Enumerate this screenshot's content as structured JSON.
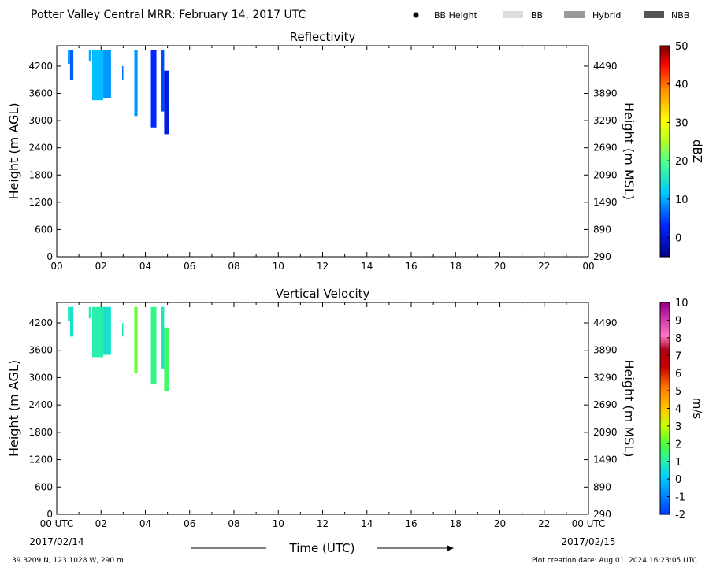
{
  "header": {
    "title": "Potter Valley Central MRR:  February 14, 2017 UTC",
    "legend": [
      {
        "label": "BB Height",
        "kind": "dot",
        "color": "#000000"
      },
      {
        "label": "BB",
        "kind": "swatch",
        "color": "#dcdcdc"
      },
      {
        "label": "Hybrid",
        "kind": "swatch",
        "color": "#9a9a9a"
      },
      {
        "label": "NBB",
        "kind": "swatch",
        "color": "#555555"
      }
    ]
  },
  "footer": {
    "location": "39.3209 N, 123.1028 W, 290 m",
    "creation": "Plot creation date: Aug 01, 2024 16:23:05 UTC",
    "time_label": "Time (UTC)",
    "start_date": "2017/02/14",
    "end_date": "2017/02/15"
  },
  "chart_data": [
    {
      "type": "heatmap",
      "title": "Reflectivity",
      "ylabel": "Height (m AGL)",
      "y2label": "Height (m MSL)",
      "xlim": [
        0,
        24
      ],
      "ylim": [
        0,
        4650
      ],
      "x_ticks": [
        "00",
        "02",
        "04",
        "06",
        "08",
        "10",
        "12",
        "14",
        "16",
        "18",
        "20",
        "22",
        "00"
      ],
      "y_ticks": [
        0,
        600,
        1200,
        1800,
        2400,
        3000,
        3600,
        4200
      ],
      "y2_ticks": [
        290,
        890,
        1490,
        2090,
        2690,
        3290,
        3890,
        4490
      ],
      "colorbar": {
        "label": "dBZ",
        "min": -5,
        "max": 50,
        "ticks": [
          0,
          10,
          20,
          30,
          40,
          50
        ]
      },
      "streaks": [
        {
          "t0": 0.5,
          "t1": 0.6,
          "h_base": 4250,
          "h_top": 4550,
          "value": 9
        },
        {
          "t0": 0.6,
          "t1": 0.75,
          "h_base": 3900,
          "h_top": 4550,
          "value": 6
        },
        {
          "t0": 1.45,
          "t1": 1.55,
          "h_base": 4300,
          "h_top": 4550,
          "value": 10
        },
        {
          "t0": 1.6,
          "t1": 2.1,
          "h_base": 3450,
          "h_top": 4550,
          "value": 11
        },
        {
          "t0": 2.1,
          "t1": 2.45,
          "h_base": 3500,
          "h_top": 4550,
          "value": 9
        },
        {
          "t0": 2.95,
          "t1": 3.0,
          "h_base": 3900,
          "h_top": 4200,
          "value": 7
        },
        {
          "t0": 3.5,
          "t1": 3.65,
          "h_base": 3100,
          "h_top": 4550,
          "value": 9
        },
        {
          "t0": 4.25,
          "t1": 4.5,
          "h_base": 2850,
          "h_top": 4550,
          "value": 3
        },
        {
          "t0": 4.7,
          "t1": 4.85,
          "h_base": 3200,
          "h_top": 4550,
          "value": 5
        },
        {
          "t0": 4.85,
          "t1": 5.05,
          "h_base": 2700,
          "h_top": 4100,
          "value": 1
        }
      ]
    },
    {
      "type": "heatmap",
      "title": "Vertical Velocity",
      "ylabel": "Height (m AGL)",
      "y2label": "Height (m MSL)",
      "xlim": [
        0,
        24
      ],
      "ylim": [
        0,
        4650
      ],
      "x_ticks": [
        "00 UTC",
        "02",
        "04",
        "06",
        "08",
        "10",
        "12",
        "14",
        "16",
        "18",
        "20",
        "22",
        "00 UTC"
      ],
      "y_ticks": [
        0,
        600,
        1200,
        1800,
        2400,
        3000,
        3600,
        4200
      ],
      "y2_ticks": [
        290,
        890,
        1490,
        2090,
        2690,
        3290,
        3890,
        4490
      ],
      "colorbar": {
        "label": "m/s",
        "min": -2,
        "max": 10,
        "ticks": [
          -2,
          -1,
          0,
          1,
          2,
          3,
          4,
          5,
          6,
          7,
          8,
          9,
          10
        ]
      },
      "streaks": [
        {
          "t0": 0.5,
          "t1": 0.6,
          "h_base": 4250,
          "h_top": 4550,
          "value": 0.8
        },
        {
          "t0": 0.6,
          "t1": 0.75,
          "h_base": 3900,
          "h_top": 4550,
          "value": 0.6
        },
        {
          "t0": 1.45,
          "t1": 1.55,
          "h_base": 4300,
          "h_top": 4550,
          "value": 0.9
        },
        {
          "t0": 1.6,
          "t1": 2.1,
          "h_base": 3450,
          "h_top": 4550,
          "value": 1.0
        },
        {
          "t0": 2.1,
          "t1": 2.45,
          "h_base": 3500,
          "h_top": 4550,
          "value": 0.6
        },
        {
          "t0": 2.95,
          "t1": 3.0,
          "h_base": 3900,
          "h_top": 4200,
          "value": 0.8
        },
        {
          "t0": 3.5,
          "t1": 3.65,
          "h_base": 3100,
          "h_top": 4550,
          "value": 2.2
        },
        {
          "t0": 4.25,
          "t1": 4.5,
          "h_base": 2850,
          "h_top": 4550,
          "value": 1.3
        },
        {
          "t0": 4.7,
          "t1": 4.85,
          "h_base": 3200,
          "h_top": 4550,
          "value": 0.7
        },
        {
          "t0": 4.85,
          "t1": 5.05,
          "h_base": 2700,
          "h_top": 4100,
          "value": 1.6
        }
      ]
    }
  ]
}
